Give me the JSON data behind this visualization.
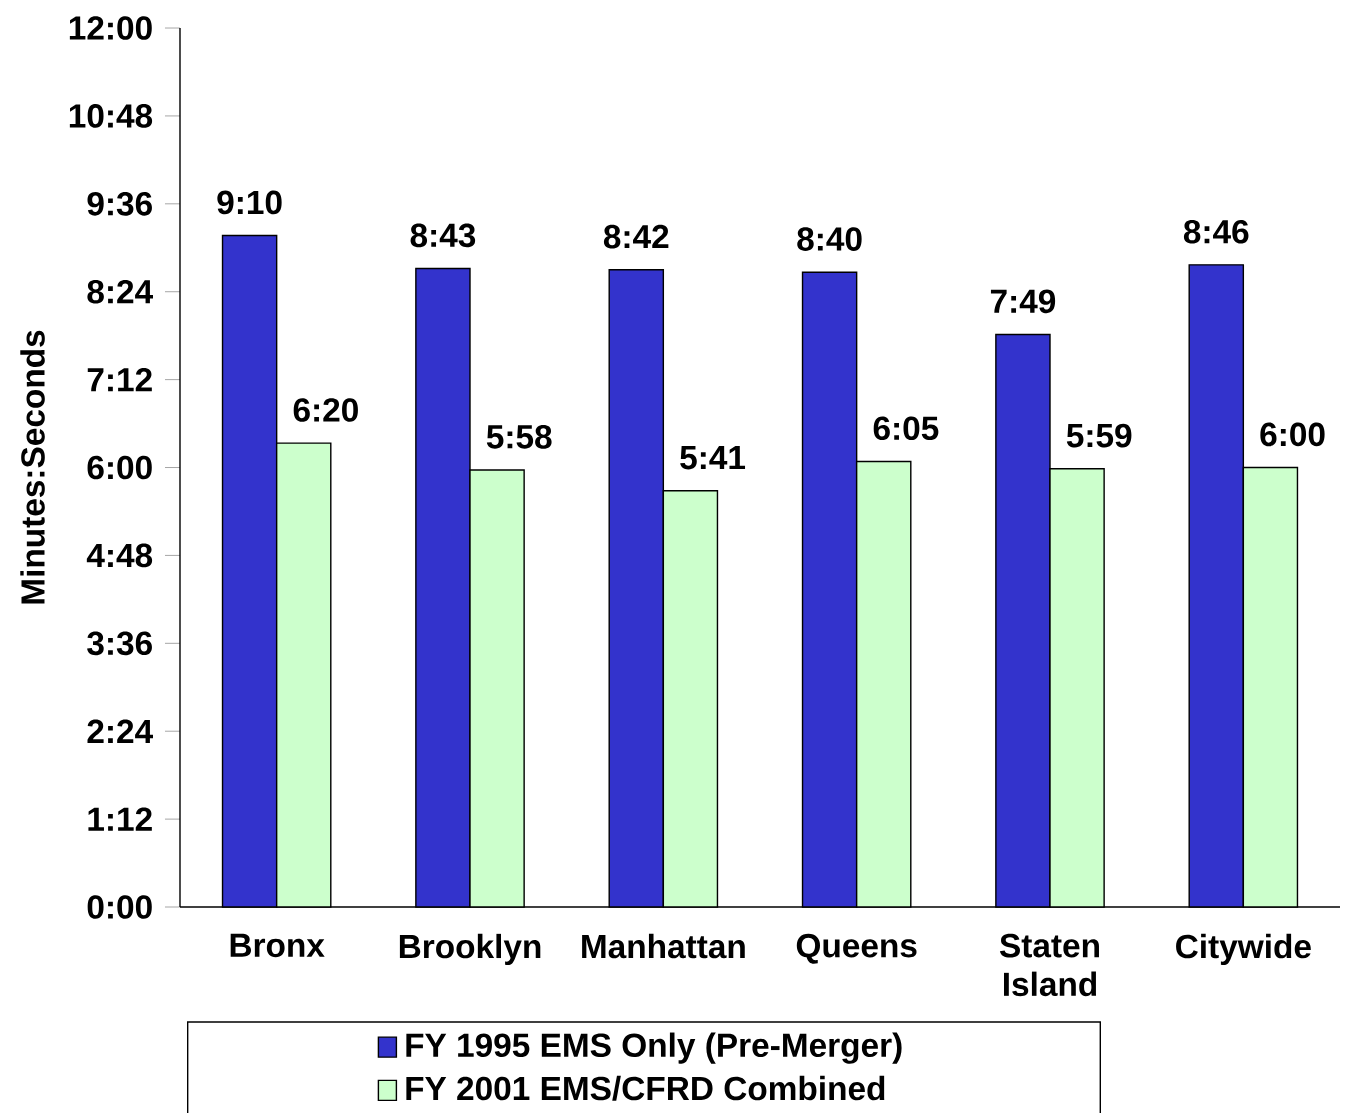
{
  "chart_data": {
    "type": "bar",
    "ylabel": "Minutes:Seconds",
    "categories": [
      "Bronx",
      "Brooklyn",
      "Manhattan",
      "Queens",
      "Staten Island",
      "Citywide"
    ],
    "series": [
      {
        "name": "FY 1995 EMS Only (Pre-Merger)",
        "color": "#3333cc",
        "values": [
          550,
          523,
          522,
          520,
          469,
          526
        ],
        "value_labels": [
          "9:10",
          "8:43",
          "8:42",
          "8:40",
          "7:49",
          "8:46"
        ]
      },
      {
        "name": "FY 2001 EMS/CFRD Combined",
        "color": "#ccffcc",
        "values": [
          380,
          358,
          341,
          365,
          359,
          360
        ],
        "value_labels": [
          "6:20",
          "5:58",
          "5:41",
          "6:05",
          "5:59",
          "6:00"
        ]
      }
    ],
    "ylim": [
      0,
      720
    ],
    "yticks": [
      {
        "value": 0,
        "label": "0:00"
      },
      {
        "value": 72,
        "label": "1:12"
      },
      {
        "value": 144,
        "label": "2:24"
      },
      {
        "value": 216,
        "label": "3:36"
      },
      {
        "value": 288,
        "label": "4:48"
      },
      {
        "value": 360,
        "label": "6:00"
      },
      {
        "value": 432,
        "label": "7:12"
      },
      {
        "value": 504,
        "label": "8:24"
      },
      {
        "value": 576,
        "label": "9:36"
      },
      {
        "value": 648,
        "label": "10:48"
      },
      {
        "value": 720,
        "label": "12:00"
      }
    ],
    "legend": "bottom"
  }
}
